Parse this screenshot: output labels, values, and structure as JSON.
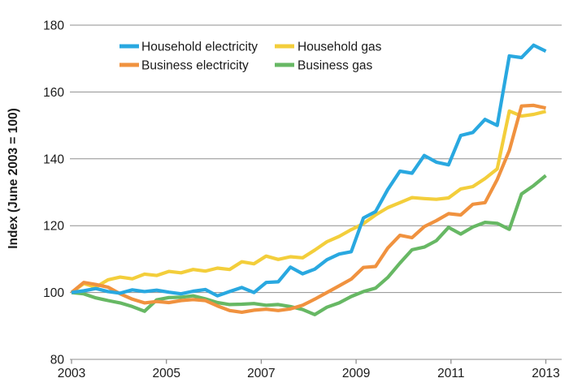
{
  "figure": {
    "y_axis_title": "Index (June 2003 = 100)"
  },
  "chart_data": {
    "type": "line",
    "title": "",
    "xlabel": "",
    "ylabel": "Index (June 2003 = 100)",
    "grid": "horizontal gridlines at each y tick, light gray",
    "legend_position": "top inside plot, two columns",
    "sampling": "quarterly index values, first point June 2003 = 100, 40 points evenly spanning the 2003 to 2013 ticks",
    "x_axis": {
      "tick_labels": [
        "2003",
        "2005",
        "2007",
        "2009",
        "2011",
        "2013"
      ],
      "tick_values": [
        2003,
        2005,
        2007,
        2009,
        2011,
        2013
      ],
      "range": [
        2003,
        2013
      ]
    },
    "y_axis": {
      "tick_labels": [
        "80",
        "100",
        "120",
        "140",
        "160",
        "180"
      ],
      "tick_values": [
        80,
        100,
        120,
        140,
        160,
        180
      ],
      "range": [
        80,
        180
      ]
    },
    "series": [
      {
        "name": "Household electricity",
        "color": "#29A8E0",
        "values": [
          100,
          100.5,
          101.2,
          100.3,
          99.8,
          100.8,
          100.3,
          100.7,
          100.1,
          99.6,
          100.4,
          100.9,
          99.0,
          100.3,
          101.5,
          100.0,
          103.0,
          103.2,
          107.6,
          105.6,
          107.0,
          109.8,
          111.5,
          112.2,
          122.3,
          124.2,
          130.8,
          136.3,
          135.7,
          141.0,
          139.0,
          138.2,
          147.0,
          147.9,
          151.8,
          150.0,
          170.8,
          170.3,
          174.0,
          172.2
        ]
      },
      {
        "name": "Business electricity",
        "color": "#F0923F",
        "values": [
          100,
          103.0,
          102.4,
          101.6,
          99.6,
          98.0,
          96.9,
          97.3,
          97.0,
          97.6,
          97.9,
          97.6,
          96.0,
          94.6,
          94.1,
          94.7,
          95.0,
          94.6,
          95.1,
          96.2,
          98.0,
          100.0,
          102.0,
          104.0,
          107.5,
          107.8,
          113.3,
          117.1,
          116.4,
          119.7,
          121.5,
          123.6,
          123.2,
          126.4,
          126.9,
          133.8,
          142.5,
          155.8,
          156.0,
          155.2
        ]
      },
      {
        "name": "Household gas",
        "color": "#F3CE3B",
        "values": [
          100,
          102.7,
          101.6,
          103.8,
          104.6,
          104.1,
          105.5,
          105.1,
          106.3,
          105.9,
          106.9,
          106.4,
          107.3,
          106.9,
          109.2,
          108.6,
          110.9,
          109.9,
          110.7,
          110.4,
          112.7,
          115.2,
          116.8,
          118.8,
          120.6,
          123.2,
          125.4,
          126.9,
          128.4,
          128.1,
          127.9,
          128.3,
          131.0,
          131.7,
          134.1,
          137.0,
          154.3,
          152.8,
          153.3,
          154.2
        ]
      },
      {
        "name": "Business gas",
        "color": "#67B864",
        "values": [
          100,
          99.6,
          98.4,
          97.6,
          96.9,
          95.8,
          94.4,
          97.8,
          98.5,
          98.6,
          99.0,
          98.1,
          97.0,
          96.4,
          96.5,
          96.7,
          96.2,
          96.4,
          95.8,
          94.9,
          93.4,
          95.6,
          96.9,
          98.8,
          100.3,
          101.3,
          104.5,
          108.8,
          112.8,
          113.6,
          115.5,
          119.5,
          117.5,
          119.6,
          121.0,
          120.7,
          118.9,
          129.5,
          132.0,
          135.0
        ]
      }
    ],
    "style": {
      "gridline_color": "#8F8F8F",
      "line_width": 4.2,
      "text_color": "#1a1a1a"
    }
  }
}
